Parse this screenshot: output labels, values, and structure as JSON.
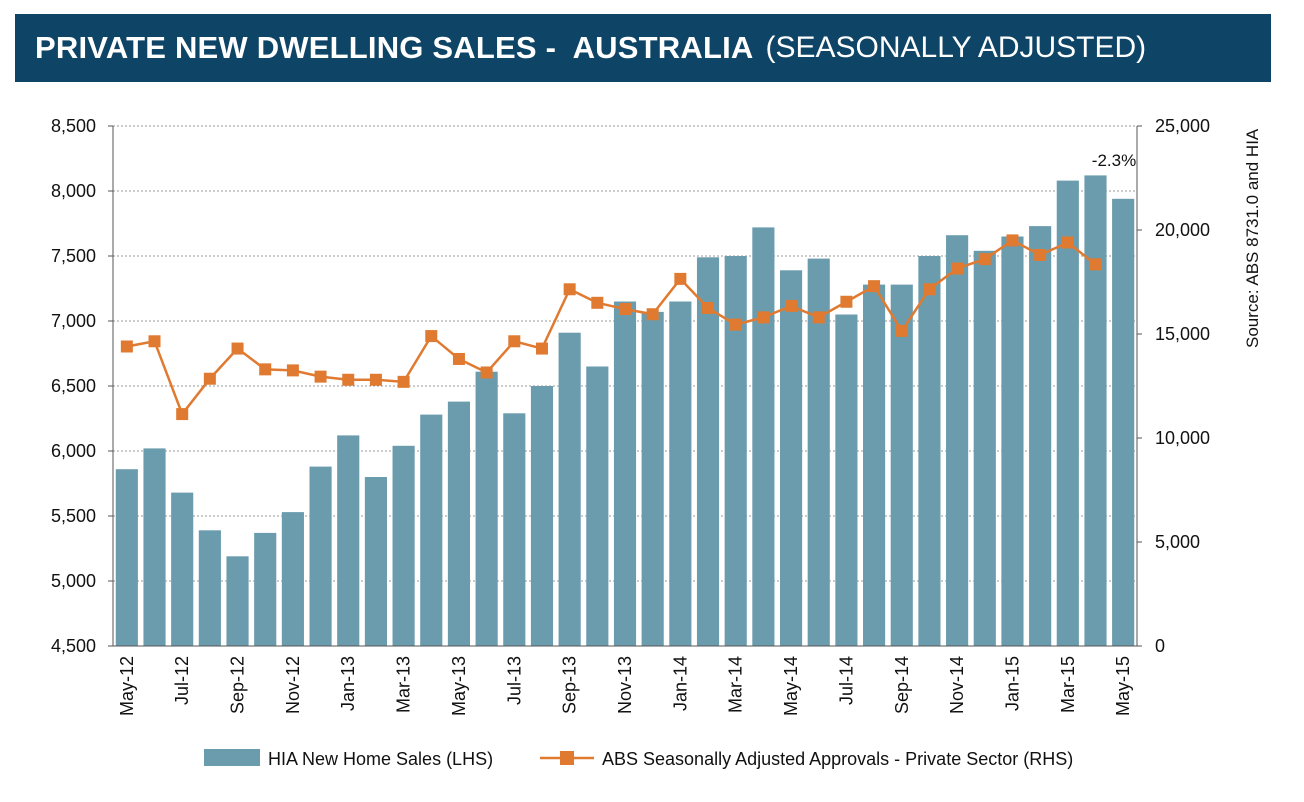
{
  "header": {
    "title_bold": "PRIVATE NEW DWELLING SALES -  AUSTRALIA",
    "title_light": "(SEASONALLY ADJUSTED)"
  },
  "colors": {
    "banner": "#0e4466",
    "bar": "#6b9cad",
    "line": "#e07a30"
  },
  "chart_data": {
    "type": "bar+line",
    "title": "PRIVATE NEW DWELLING SALES -  AUSTRALIA (SEASONALLY ADJUSTED)",
    "source_note": "Source: ABS 8731.0 and HIA",
    "annotation": "-2.3%",
    "categories": [
      "May-12",
      "Jun-12",
      "Jul-12",
      "Aug-12",
      "Sep-12",
      "Oct-12",
      "Nov-12",
      "Dec-12",
      "Jan-13",
      "Feb-13",
      "Mar-13",
      "Apr-13",
      "May-13",
      "Jun-13",
      "Jul-13",
      "Aug-13",
      "Sep-13",
      "Oct-13",
      "Nov-13",
      "Dec-13",
      "Jan-14",
      "Feb-14",
      "Mar-14",
      "Apr-14",
      "May-14",
      "Jun-14",
      "Jul-14",
      "Aug-14",
      "Sep-14",
      "Oct-14",
      "Nov-14",
      "Dec-14",
      "Jan-15",
      "Feb-15",
      "Mar-15",
      "Apr-15",
      "May-15"
    ],
    "x_tick_labels": [
      "May-12",
      "Jul-12",
      "Sep-12",
      "Nov-12",
      "Jan-13",
      "Mar-13",
      "May-13",
      "Jul-13",
      "Sep-13",
      "Nov-13",
      "Jan-14",
      "Mar-14",
      "May-14",
      "Jul-14",
      "Sep-14",
      "Nov-14",
      "Jan-15",
      "Mar-15",
      "May-15"
    ],
    "y_left": {
      "min": 4500,
      "max": 8500,
      "ticks": [
        "4,500",
        "5,000",
        "5,500",
        "6,000",
        "6,500",
        "7,000",
        "7,500",
        "8,000",
        "8,500"
      ]
    },
    "y_right": {
      "min": 0,
      "max": 25000,
      "ticks": [
        "0",
        "5,000",
        "10,000",
        "15,000",
        "20,000",
        "25,000"
      ]
    },
    "grid": true,
    "legend_position": "bottom",
    "series": [
      {
        "name": "HIA New Home Sales (LHS)",
        "type": "bar",
        "axis": "left",
        "values": [
          5860,
          6020,
          5680,
          5390,
          5190,
          5370,
          5530,
          5880,
          6120,
          5800,
          6040,
          6280,
          6380,
          6610,
          6290,
          6500,
          6910,
          6650,
          7150,
          7070,
          7150,
          7490,
          7500,
          7720,
          7390,
          7480,
          7050,
          7280,
          7280,
          7500,
          7660,
          7540,
          7650,
          7730,
          8080,
          8120,
          7940
        ]
      },
      {
        "name": "ABS Seasonally Adjusted Approvals - Private Sector (RHS)",
        "type": "line",
        "axis": "right",
        "values": [
          14400,
          14650,
          11150,
          12850,
          14300,
          13300,
          13250,
          12950,
          12800,
          12800,
          12700,
          14900,
          13800,
          13150,
          14650,
          14300,
          17150,
          16500,
          16200,
          15950,
          17650,
          16250,
          15450,
          15800,
          16350,
          15800,
          16550,
          17300,
          15150,
          17150,
          18150,
          18600,
          19500,
          18800,
          19400,
          18350,
          null
        ]
      }
    ]
  }
}
